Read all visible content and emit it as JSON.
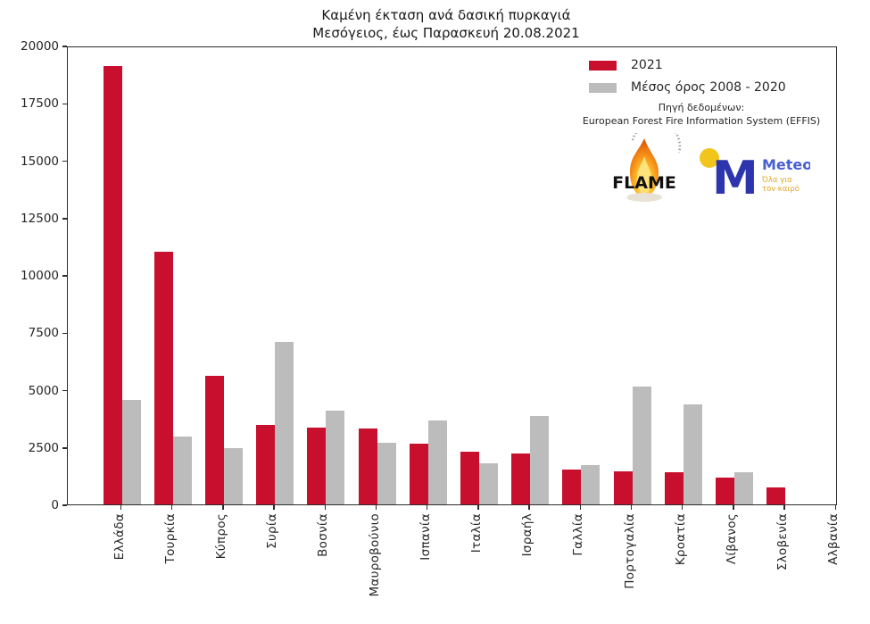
{
  "title": {
    "line1": "Καμένη έκταση ανά δασική πυρκαγιά",
    "line2": "Μεσόγειος, έως Παρασκευή 20.08.2021"
  },
  "legend": {
    "items": [
      {
        "label": "2021",
        "color": "#c8102e"
      },
      {
        "label": "Μέσος όρος 2008 - 2020",
        "color": "#bcbcbc"
      }
    ]
  },
  "source": {
    "line1": "Πηγή δεδομένων:",
    "line2": "European Forest Fire Information System (EFFIS)"
  },
  "logos": {
    "flame": {
      "label": "FLAME"
    },
    "meteo": {
      "name": "Meteo",
      "tagline_line1": "Όλα για",
      "tagline_line2": "τον καιρό",
      "m_color": "#2d35ae",
      "name_color": "#4a5fd0",
      "dot_color": "#f2c51d",
      "tagline_color": "#e0a62a"
    }
  },
  "chart_data": {
    "type": "bar",
    "title": "Καμένη έκταση ανά δασική πυρκαγιά — Μεσόγειος, έως Παρασκευή 20.08.2021",
    "categories": [
      "Ελλάδα",
      "Τουρκία",
      "Κύπρος",
      "Συρία",
      "Βοσνία",
      "Μαυροβούνιο",
      "Ισπανία",
      "Ιταλία",
      "Ισραήλ",
      "Γαλλία",
      "Πορτογαλία",
      "Κροατία",
      "Λίβανος",
      "Σλοβενία",
      "Αλβανία"
    ],
    "series": [
      {
        "name": "2021",
        "color": "#c8102e",
        "values": [
          19100,
          11000,
          5600,
          3450,
          3350,
          3300,
          2650,
          2300,
          2200,
          1500,
          1450,
          1400,
          1150,
          750,
          0
        ]
      },
      {
        "name": "Μέσος όρος 2008 - 2020",
        "color": "#bcbcbc",
        "values": [
          4550,
          2950,
          2450,
          7100,
          4100,
          2700,
          3650,
          1800,
          3850,
          1700,
          5150,
          4350,
          1400,
          0,
          0
        ]
      }
    ],
    "xlabel": "",
    "ylabel": "",
    "ylim": [
      0,
      20000
    ],
    "yticks": [
      0,
      2500,
      5000,
      7500,
      10000,
      12500,
      15000,
      17500,
      20000
    ],
    "grid": false,
    "legend_position": "upper right"
  }
}
